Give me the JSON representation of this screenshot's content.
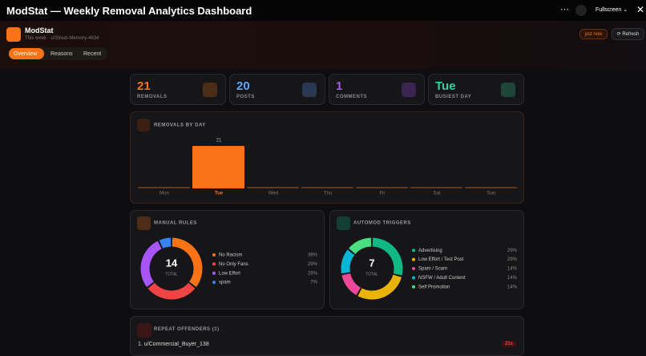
{
  "window": {
    "title": "ModStat — Weekly Removal Analytics Dashboard",
    "fullscreen": "Fullscreen"
  },
  "header": {
    "app": "ModStat",
    "subtitle": "This week · u/Street-Memory-4634",
    "status": "just now",
    "refresh": "Refresh",
    "tabs": [
      "Overview",
      "Reasons",
      "Recent"
    ]
  },
  "stats": [
    {
      "value": 21,
      "label": "REMOVALS",
      "color": "#f97316"
    },
    {
      "value": 20,
      "label": "POSTS",
      "color": "#60a5fa"
    },
    {
      "value": 1,
      "label": "COMMENTS",
      "color": "#a855f7"
    },
    {
      "value": "Tue",
      "label": "BUSIEST DAY",
      "color": "#34d399"
    }
  ],
  "chart_data": [
    {
      "type": "bar",
      "title": "REMOVALS BY DAY",
      "categories": [
        "Mon",
        "Tue",
        "Wed",
        "Thu",
        "Fri",
        "Sat",
        "Sun"
      ],
      "values": [
        0,
        21,
        0,
        0,
        0,
        0,
        0
      ],
      "color": "#f97316"
    },
    {
      "type": "pie",
      "title": "MANUAL RULES",
      "total": 14,
      "total_label": "TOTAL",
      "categories": [
        "No Racism",
        "No Only Fans",
        "Low Effort",
        "spam"
      ],
      "values": [
        36,
        29,
        29,
        7
      ],
      "value_labels": [
        "36%",
        "29%",
        "29%",
        "7%"
      ],
      "colors": [
        "#f97316",
        "#ef4444",
        "#a855f7",
        "#3b82f6"
      ]
    },
    {
      "type": "pie",
      "title": "AUTOMOD TRIGGERS",
      "total": 7,
      "total_label": "TOTAL",
      "categories": [
        "Advertising",
        "Low Effort / Test Post",
        "Spam / Scam",
        "NSFW / Adult Content",
        "Self Promotion"
      ],
      "values": [
        29,
        29,
        14,
        14,
        14
      ],
      "value_labels": [
        "29%",
        "29%",
        "14%",
        "14%",
        "14%"
      ],
      "colors": [
        "#10b981",
        "#eab308",
        "#ec4899",
        "#06b6d4",
        "#4ade80"
      ]
    }
  ],
  "repeat_offenders": {
    "title": "REPEAT OFFENDERS (1)",
    "rows": [
      {
        "name": "1. u/Commercial_Buyer_138",
        "count": "21x"
      }
    ]
  }
}
